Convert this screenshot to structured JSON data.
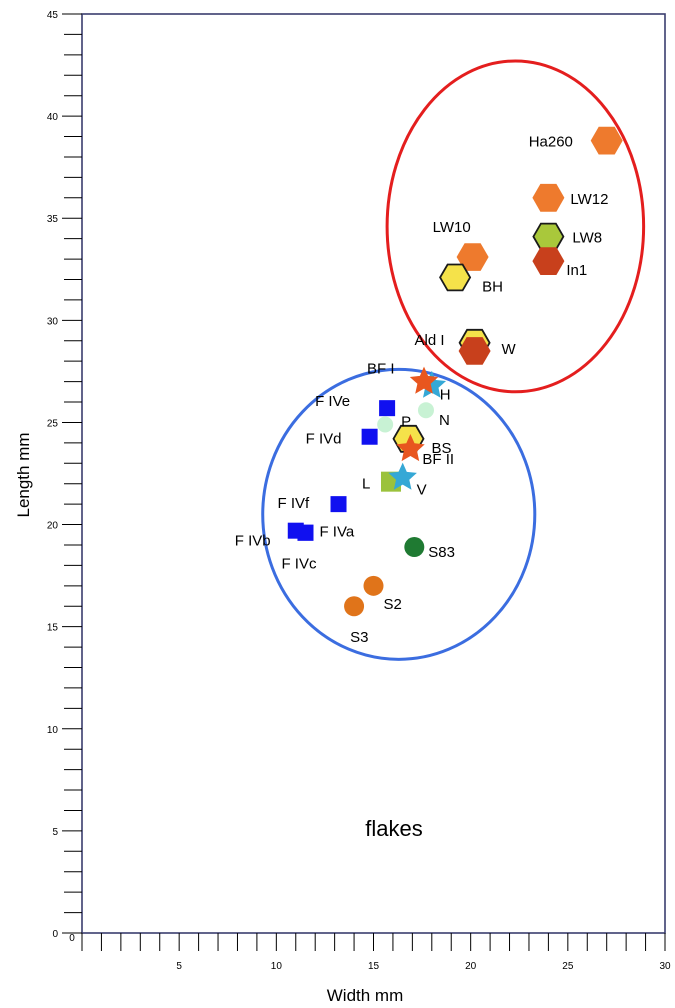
{
  "chart_data": {
    "type": "scatter",
    "xlabel": "Width mm",
    "ylabel": "Length mm",
    "xlim": [
      0,
      30
    ],
    "ylim": [
      0,
      45
    ],
    "x_ticks": [
      "0",
      "5",
      "10",
      "15",
      "20",
      "25",
      "30"
    ],
    "y_ticks": [
      "0",
      "5",
      "10",
      "15",
      "20",
      "25",
      "30",
      "35",
      "40",
      "45"
    ],
    "annotation": "flakes",
    "colors": {
      "orange": "#ee7a2d",
      "yellow": "#f5e24a",
      "lime": "#a9c83b",
      "darkred": "#c8401c",
      "redorange": "#e8561f",
      "cyan": "#35a8d6",
      "blue": "#1010f0",
      "mint": "#c8f2d4",
      "green": "#9bc23c",
      "darkgreen": "#1f7a32",
      "dotorange": "#e0741a",
      "ellipse_red": "#e41e1e",
      "ellipse_blue": "#3b6de0"
    },
    "points": [
      {
        "label": "Ha260",
        "x": 27.0,
        "y": 38.8,
        "marker": "hexagon",
        "color": "orange"
      },
      {
        "label": "LW12",
        "x": 24.0,
        "y": 36.0,
        "marker": "hexagon",
        "color": "orange"
      },
      {
        "label": "LW8",
        "x": 24.0,
        "y": 34.1,
        "marker": "hexagon-outlined",
        "color": "lime"
      },
      {
        "label": "In1",
        "x": 24.0,
        "y": 32.9,
        "marker": "hexagon",
        "color": "darkred"
      },
      {
        "label": "LW10",
        "x": 20.1,
        "y": 33.1,
        "marker": "hexagon",
        "color": "orange"
      },
      {
        "label": "BH",
        "x": 19.2,
        "y": 32.1,
        "marker": "hexagon-outlined",
        "color": "yellow"
      },
      {
        "label": "Ald I",
        "x": 20.2,
        "y": 28.9,
        "marker": "hexagon-outlined",
        "color": "yellow"
      },
      {
        "label": "W",
        "x": 20.2,
        "y": 28.5,
        "marker": "hexagon",
        "color": "darkred"
      },
      {
        "label": "H",
        "x": 18.0,
        "y": 26.8,
        "marker": "star",
        "color": "cyan"
      },
      {
        "label": "BF I",
        "x": 17.6,
        "y": 27.0,
        "marker": "star",
        "color": "redorange"
      },
      {
        "label": "N",
        "x": 17.7,
        "y": 25.6,
        "marker": "circle",
        "color": "mint"
      },
      {
        "label": "F IVe",
        "x": 15.7,
        "y": 25.7,
        "marker": "square",
        "color": "blue"
      },
      {
        "label": "P",
        "x": 15.6,
        "y": 24.9,
        "marker": "circle",
        "color": "mint"
      },
      {
        "label": "F IVd",
        "x": 14.8,
        "y": 24.3,
        "marker": "square",
        "color": "blue"
      },
      {
        "label": "BS",
        "x": 16.8,
        "y": 24.2,
        "marker": "hexagon-outlined",
        "color": "yellow"
      },
      {
        "label": "BF II",
        "x": 16.9,
        "y": 23.7,
        "marker": "star",
        "color": "redorange"
      },
      {
        "label": "L",
        "x": 15.9,
        "y": 22.1,
        "marker": "square",
        "color": "green"
      },
      {
        "label": "V",
        "x": 16.5,
        "y": 22.3,
        "marker": "star",
        "color": "cyan"
      },
      {
        "label": "F IVf",
        "x": 13.2,
        "y": 21.0,
        "marker": "square",
        "color": "blue"
      },
      {
        "label": "F IVa",
        "x": 11.5,
        "y": 19.6,
        "marker": "square",
        "color": "blue"
      },
      {
        "label": "F IVb",
        "x": 11.0,
        "y": 19.7,
        "marker": "square",
        "color": "blue"
      },
      {
        "label": "F IVc",
        "x": 11.5,
        "y": 19.6,
        "marker": "square",
        "color": "blue"
      },
      {
        "label": "S83",
        "x": 17.1,
        "y": 18.9,
        "marker": "circle",
        "color": "darkgreen"
      },
      {
        "label": "S2",
        "x": 15.0,
        "y": 17.0,
        "marker": "circle",
        "color": "dotorange"
      },
      {
        "label": "S3",
        "x": 14.0,
        "y": 16.0,
        "marker": "circle",
        "color": "dotorange"
      }
    ],
    "groups": [
      {
        "shape": "ellipse",
        "color": "ellipse_red",
        "cx": 22.3,
        "cy": 34.6,
        "rx": 6.6,
        "ry": 8.1
      },
      {
        "shape": "ellipse",
        "color": "ellipse_blue",
        "cx": 16.3,
        "cy": 20.5,
        "rx": 7.0,
        "ry": 7.1
      }
    ]
  }
}
